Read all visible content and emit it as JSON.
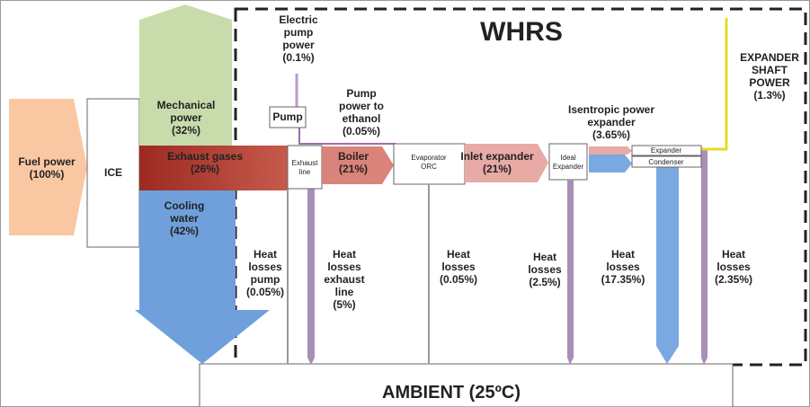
{
  "title": "WHRS",
  "labels": {
    "electric_pump": [
      "Electric",
      "pump",
      "power",
      "(0.1%)"
    ],
    "fuel": [
      "Fuel power",
      "(100%)"
    ],
    "ice": [
      "ICE"
    ],
    "mechanical": [
      "Mechanical",
      "power",
      "(32%)"
    ],
    "exhaust_gases": [
      "Exhaust gases",
      "(26%)"
    ],
    "cooling": [
      "Cooling",
      "water",
      "(42%)"
    ],
    "pump": [
      "Pump"
    ],
    "pump_power": [
      "Pump",
      "power to",
      "ethanol",
      "(0.05%)"
    ],
    "exhaust_line": [
      "Exhaust",
      "line"
    ],
    "boiler": [
      "Boiler",
      "(21%)"
    ],
    "evaporator": [
      "Evaporator",
      "ORC"
    ],
    "inlet_expander": [
      "Inlet expander",
      "(21%)"
    ],
    "ideal_expander": [
      "Ideal",
      "Expander"
    ],
    "isentropic": [
      "Isentropic power",
      "expander",
      "(3.65%)"
    ],
    "expander": [
      "Expander"
    ],
    "condenser": [
      "Condenser"
    ],
    "shaft": [
      "EXPANDER",
      "SHAFT",
      "POWER",
      "(1.3%)"
    ],
    "loss_pump": [
      "Heat",
      "losses",
      "pump",
      "(0.05%)"
    ],
    "loss_exhaust": [
      "Heat",
      "losses",
      "exhaust",
      "line",
      "(5%)"
    ],
    "loss_evap": [
      "Heat",
      "losses",
      "(0.05%)"
    ],
    "loss_ideal": [
      "Heat",
      "losses",
      "(2.5%)"
    ],
    "loss_cond": [
      "Heat",
      "losses",
      "(17.35%)"
    ],
    "loss_exp": [
      "Heat",
      "losses",
      "(2.35%)"
    ],
    "ambient": [
      "AMBIENT (25ºC)"
    ]
  }
}
